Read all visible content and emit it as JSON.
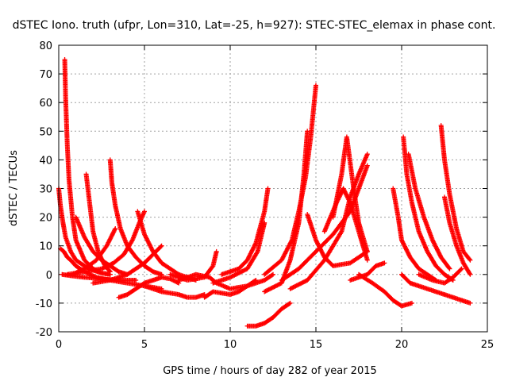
{
  "chart_data": {
    "type": "scatter",
    "title": "dSTEC Iono. truth (ufpr, Lon=310, Lat=-25, h=927): STEC-STEC_elemax in phase cont.",
    "xlabel": "GPS time / hours of day 282 of year 2015",
    "ylabel": "dSTEC  / TECUs",
    "xlim": [
      0,
      25
    ],
    "ylim": [
      -20,
      80
    ],
    "xticks": [
      0,
      5,
      10,
      15,
      20,
      25
    ],
    "yticks": [
      -20,
      -10,
      0,
      10,
      20,
      30,
      40,
      50,
      60,
      70,
      80
    ],
    "grid": true,
    "legend": false,
    "marker": "+",
    "color": "#ff0000",
    "series": [
      {
        "x": [
          0.0,
          0.1,
          0.25,
          0.4,
          0.7,
          1.0,
          1.5,
          2.0,
          2.5,
          3.0
        ],
        "y": [
          30,
          24,
          18,
          13,
          8,
          5,
          3,
          1.5,
          0.5,
          0
        ]
      },
      {
        "x": [
          0.1,
          0.3,
          0.5,
          0.7,
          1.0,
          1.5,
          2.2,
          3.0,
          4.0,
          5.0,
          6.0
        ],
        "y": [
          9,
          8,
          6,
          5,
          3,
          1,
          -1,
          -2,
          -3,
          -4,
          -5
        ]
      },
      {
        "x": [
          0.35,
          0.4,
          0.5,
          0.6,
          0.8,
          1.0,
          1.5,
          2.0,
          2.5,
          3.0
        ],
        "y": [
          75,
          62,
          45,
          33,
          20,
          12,
          5,
          2,
          0.5,
          0
        ]
      },
      {
        "x": [
          0.2,
          0.8,
          1.5,
          2.5,
          3.5,
          4.5
        ],
        "y": [
          0,
          -0.5,
          -1,
          -1.5,
          -2,
          -2
        ]
      },
      {
        "x": [
          0.5,
          1.5,
          2.5,
          3.2,
          3.8,
          4.3,
          4.7,
          5.0
        ],
        "y": [
          0,
          1,
          2,
          4,
          7,
          12,
          18,
          22
        ]
      },
      {
        "x": [
          1.0,
          1.5,
          2.0,
          2.5,
          3.0,
          3.5,
          4.0
        ],
        "y": [
          20,
          13,
          8,
          5,
          3,
          1,
          0
        ]
      },
      {
        "x": [
          1.6,
          1.8,
          2.0,
          2.3,
          2.7,
          3.0
        ],
        "y": [
          35,
          25,
          15,
          8,
          3,
          1
        ]
      },
      {
        "x": [
          0.8,
          1.5,
          2.2,
          2.8,
          3.3
        ],
        "y": [
          0,
          2,
          5,
          10,
          16
        ]
      },
      {
        "x": [
          3.0,
          3.1,
          3.3,
          3.6,
          4.0,
          4.5,
          5.0,
          5.5,
          6.0
        ],
        "y": [
          40,
          32,
          24,
          16,
          10,
          6,
          3,
          1,
          0
        ]
      },
      {
        "x": [
          2.0,
          3.0,
          4.0,
          5.0,
          5.5,
          6.0
        ],
        "y": [
          -3,
          -2,
          0,
          4,
          7,
          10
        ]
      },
      {
        "x": [
          3.5,
          4.0,
          4.5,
          5.0,
          5.5,
          6.0,
          6.5,
          7.0
        ],
        "y": [
          -8,
          -7,
          -5,
          -3,
          -2,
          -1,
          -1.5,
          -3
        ]
      },
      {
        "x": [
          4.6,
          5.0,
          5.5,
          6.0,
          7.0,
          8.0
        ],
        "y": [
          22,
          14,
          8,
          4,
          0,
          -2
        ]
      },
      {
        "x": [
          5.0,
          6.0,
          7.0,
          7.5,
          8.0,
          8.5
        ],
        "y": [
          -4,
          -6,
          -7,
          -8,
          -8,
          -7
        ]
      },
      {
        "x": [
          6.5,
          7.5,
          8.5,
          9.0,
          9.2
        ],
        "y": [
          0,
          -2,
          -1,
          3,
          8
        ]
      },
      {
        "x": [
          7.0,
          8.0,
          8.8,
          9.2,
          10.0,
          11.0,
          12.0,
          12.5
        ],
        "y": [
          -2,
          0,
          -1,
          -3,
          -5,
          -4,
          -2,
          0
        ]
      },
      {
        "x": [
          8.5,
          9.0,
          10.0,
          10.5,
          11.0,
          11.5
        ],
        "y": [
          -8,
          -6,
          -7,
          -6,
          -4,
          -2
        ]
      },
      {
        "x": [
          9.0,
          10.0,
          11.0,
          11.6,
          12.0
        ],
        "y": [
          -3,
          -1,
          2,
          8,
          18
        ]
      },
      {
        "x": [
          9.5,
          10.5,
          11.0,
          11.5,
          12.0,
          12.2
        ],
        "y": [
          0,
          2,
          5,
          11,
          22,
          30
        ]
      },
      {
        "x": [
          11.0,
          11.5,
          12.0,
          12.5,
          13.0,
          13.5
        ],
        "y": [
          -18,
          -18,
          -17,
          -15,
          -12,
          -10
        ]
      },
      {
        "x": [
          12.0,
          13.0,
          13.5,
          14.0,
          14.3,
          14.5
        ],
        "y": [
          -6,
          -3,
          5,
          18,
          35,
          50
        ]
      },
      {
        "x": [
          12.0,
          13.0,
          13.6,
          14.0,
          14.4,
          14.7,
          15.0
        ],
        "y": [
          0,
          5,
          12,
          22,
          34,
          48,
          66
        ]
      },
      {
        "x": [
          13.0,
          14.0,
          15.0,
          16.0,
          17.0,
          17.5,
          18.0
        ],
        "y": [
          -2,
          2,
          8,
          14,
          22,
          30,
          38
        ]
      },
      {
        "x": [
          13.5,
          14.5,
          15.5,
          16.5,
          17.0,
          17.5,
          18.0
        ],
        "y": [
          -5,
          -2,
          5,
          15,
          27,
          35,
          42
        ]
      },
      {
        "x": [
          14.5,
          15.0,
          15.5,
          16.0,
          17.0,
          18.0
        ],
        "y": [
          21,
          12,
          6,
          3,
          4,
          8
        ]
      },
      {
        "x": [
          15.5,
          16.2,
          16.6,
          17.0,
          17.5,
          18.0
        ],
        "y": [
          15,
          25,
          30,
          25,
          15,
          5
        ]
      },
      {
        "x": [
          16.0,
          16.5,
          16.8,
          17.2,
          17.5,
          18.0
        ],
        "y": [
          20,
          35,
          48,
          30,
          18,
          8
        ]
      },
      {
        "x": [
          17.0,
          18.0,
          18.5,
          19.0
        ],
        "y": [
          -2,
          0,
          3,
          4
        ]
      },
      {
        "x": [
          17.5,
          18.3,
          19.0,
          19.5,
          20.0,
          20.6
        ],
        "y": [
          0,
          -3,
          -6,
          -9,
          -11,
          -10
        ]
      },
      {
        "x": [
          19.5,
          19.8,
          20.0,
          20.5,
          21.0,
          22.0
        ],
        "y": [
          30,
          20,
          12,
          6,
          2,
          -2
        ]
      },
      {
        "x": [
          20.1,
          20.3,
          20.6,
          21.0,
          21.5,
          22.0,
          22.5,
          23.0
        ],
        "y": [
          48,
          35,
          25,
          15,
          8,
          3,
          0,
          -2
        ]
      },
      {
        "x": [
          20.4,
          20.8,
          21.3,
          21.8,
          22.3,
          22.8
        ],
        "y": [
          42,
          30,
          20,
          12,
          6,
          2
        ]
      },
      {
        "x": [
          20.0,
          20.5,
          21.0,
          22.0,
          23.0,
          24.0
        ],
        "y": [
          0,
          -3,
          -4,
          -6,
          -8,
          -10
        ]
      },
      {
        "x": [
          22.3,
          22.5,
          22.8,
          23.2,
          23.6,
          24.0
        ],
        "y": [
          52,
          40,
          28,
          16,
          8,
          5
        ]
      },
      {
        "x": [
          22.5,
          22.8,
          23.2,
          23.6,
          24.0
        ],
        "y": [
          27,
          18,
          10,
          4,
          0
        ]
      },
      {
        "x": [
          21.0,
          21.8,
          22.5,
          23.0,
          23.5
        ],
        "y": [
          0,
          -2,
          -3,
          -1,
          2
        ]
      }
    ]
  }
}
